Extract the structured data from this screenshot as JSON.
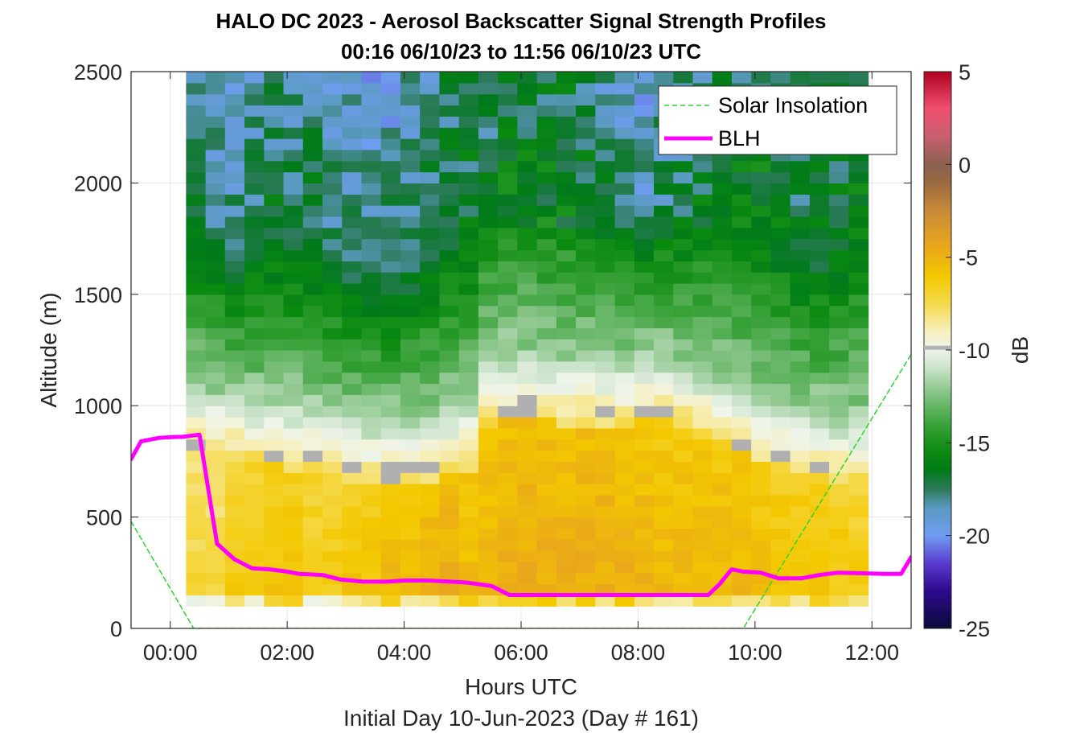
{
  "chart_data": {
    "type": "heatmap",
    "title": "HALO DC 2023 - Aerosol Backscatter Signal Strength Profiles",
    "subtitle": "00:16 06/10/23 to 11:56 06/10/23  UTC",
    "xlabel": "Hours UTC",
    "xlabel2": "Initial Day 10-Jun-2023 (Day # 161)",
    "ylabel": "Altitude (m)",
    "colorbar_label": "dB",
    "xlim": [
      -0.67,
      12.67
    ],
    "ylim": [
      0,
      2500
    ],
    "clim": [
      -25,
      5
    ],
    "x_ticks": [
      0,
      2,
      4,
      6,
      8,
      10,
      12
    ],
    "x_tick_labels": [
      "00:00",
      "02:00",
      "04:00",
      "06:00",
      "08:00",
      "10:00",
      "12:00"
    ],
    "y_ticks": [
      0,
      500,
      1000,
      1500,
      2000,
      2500
    ],
    "y_tick_labels": [
      "0",
      "500",
      "1000",
      "1500",
      "2000",
      "2500"
    ],
    "colorbar_ticks": [
      -25,
      -20,
      -15,
      -10,
      -5,
      0,
      5
    ],
    "colorbar_tick_labels": [
      "-25",
      "-20",
      "-15",
      "-10",
      "-5",
      "0",
      "5"
    ],
    "grid": true,
    "legend_position": "top-right",
    "heatmap": {
      "x_start_hours": 0.27,
      "x_step_hours": 0.3333,
      "columns": 35,
      "y_start_m": 100,
      "y_step_m": 50,
      "rows": 48,
      "boundary_layer_heights_m": [
        850,
        830,
        820,
        800,
        800,
        780,
        760,
        740,
        720,
        700,
        700,
        700,
        720,
        760,
        780,
        980,
        1000,
        1000,
        990,
        980,
        980,
        970,
        960,
        990,
        990,
        960,
        920,
        890,
        850,
        800,
        780,
        760,
        740,
        720,
        720
      ],
      "surface_db": [
        -7,
        -7,
        -6,
        -6,
        -5.5,
        -5.5,
        -6,
        -6,
        -5.5,
        -5.5,
        -5,
        -5,
        -4.5,
        -4.5,
        -5,
        -4.8,
        -4.5,
        -4.5,
        -4.5,
        -4.5,
        -4.5,
        -4.5,
        -4.6,
        -4.8,
        -5,
        -5,
        -5,
        -5,
        -5,
        -5.2,
        -5.5,
        -5.5,
        -5.5,
        -5.8,
        -6
      ],
      "upper_db": [
        -17,
        -17.5,
        -18,
        -17.5,
        -17,
        -17,
        -17,
        -17.5,
        -18,
        -18,
        -18,
        -17.5,
        -17,
        -16.5,
        -16.5,
        -16.5,
        -16,
        -16,
        -16,
        -16,
        -16.5,
        -17,
        -17.5,
        -18,
        -17.5,
        -17,
        -16.5,
        -16,
        -16,
        -16,
        -16.5,
        -17,
        -17,
        -16.5,
        -16
      ]
    },
    "series": [
      {
        "name": "Solar Insolation",
        "style": "dashed",
        "color": "#2bd62b",
        "x": [
          -0.67,
          0.4,
          9.8,
          12.67
        ],
        "y": [
          480,
          0,
          0,
          1230
        ]
      },
      {
        "name": "BLH",
        "style": "solid",
        "color": "#ff00ff",
        "x": [
          -0.67,
          -0.5,
          -0.2,
          0.1,
          0.2,
          0.27,
          0.5,
          0.8,
          1.1,
          1.4,
          1.7,
          2.0,
          2.2,
          2.6,
          2.9,
          3.3,
          3.7,
          4.0,
          4.4,
          4.8,
          5.1,
          5.5,
          5.8,
          5.9,
          6.3,
          6.7,
          7.1,
          7.5,
          7.9,
          8.3,
          8.7,
          9.0,
          9.2,
          9.4,
          9.6,
          9.8,
          10.1,
          10.4,
          10.8,
          11.1,
          11.4,
          11.8,
          12.2,
          12.5,
          12.67
        ],
        "y": [
          760,
          840,
          855,
          860,
          860,
          862,
          870,
          380,
          310,
          270,
          265,
          255,
          245,
          240,
          220,
          210,
          210,
          215,
          215,
          210,
          205,
          190,
          150,
          150,
          150,
          150,
          150,
          150,
          150,
          150,
          150,
          150,
          150,
          200,
          265,
          255,
          250,
          225,
          225,
          240,
          250,
          248,
          245,
          245,
          320
        ]
      }
    ]
  }
}
